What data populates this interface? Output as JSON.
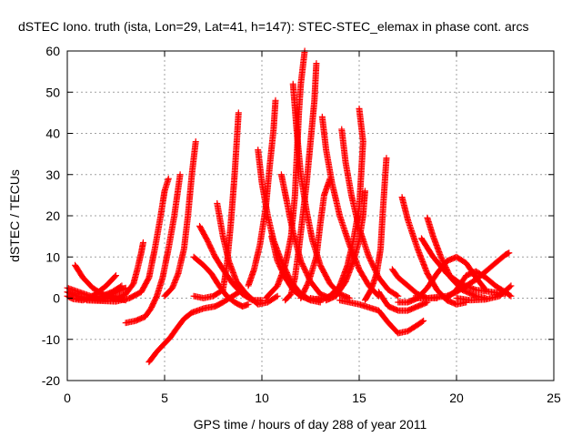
{
  "chart_data": {
    "type": "scatter",
    "title": "dSTEC Iono. truth (ista, Lon=29, Lat=41, h=147): STEC-STEC_elemax in phase cont. arcs",
    "xlabel": "GPS time / hours of day 288 of year 2011",
    "ylabel": "dSTEC  / TECUs",
    "xlim": [
      0,
      25
    ],
    "ylim": [
      -20,
      60
    ],
    "xticks": [
      0,
      5,
      10,
      15,
      20,
      25
    ],
    "yticks": [
      -20,
      -10,
      0,
      10,
      20,
      30,
      40,
      50,
      60
    ],
    "grid": true,
    "series_color": "#ff0000",
    "marker": "plus",
    "series": [
      {
        "points": [
          [
            0.0,
            1.5
          ],
          [
            0.5,
            0.5
          ],
          [
            1.0,
            0.0
          ],
          [
            1.5,
            -0.3
          ],
          [
            2.0,
            0.2
          ],
          [
            2.5,
            1.5
          ],
          [
            3.0,
            2.5
          ]
        ]
      },
      {
        "points": [
          [
            0.0,
            0.5
          ],
          [
            0.3,
            -0.2
          ],
          [
            0.8,
            -0.5
          ],
          [
            1.2,
            0.2
          ],
          [
            1.6,
            1.5
          ],
          [
            2.0,
            3.0
          ],
          [
            2.5,
            5.5
          ]
        ]
      },
      {
        "points": [
          [
            0.4,
            8.0
          ],
          [
            0.8,
            5.0
          ],
          [
            1.3,
            2.5
          ],
          [
            1.8,
            1.0
          ],
          [
            2.4,
            0.0
          ],
          [
            3.0,
            -0.5
          ]
        ]
      },
      {
        "points": [
          [
            0.0,
            2.5
          ],
          [
            0.6,
            1.5
          ],
          [
            1.2,
            0.5
          ],
          [
            1.8,
            0.5
          ],
          [
            2.3,
            1.5
          ],
          [
            2.8,
            3.0
          ]
        ]
      },
      {
        "points": [
          [
            0.5,
            0.0
          ],
          [
            1.5,
            -0.5
          ],
          [
            2.5,
            0.0
          ],
          [
            3.0,
            1.0
          ],
          [
            3.4,
            3.5
          ],
          [
            3.6,
            7.0
          ],
          [
            3.8,
            11.0
          ],
          [
            3.9,
            13.5
          ]
        ]
      },
      {
        "points": [
          [
            1.0,
            -0.5
          ],
          [
            2.5,
            -0.8
          ],
          [
            3.2,
            0.0
          ],
          [
            3.8,
            1.5
          ],
          [
            4.2,
            5.0
          ],
          [
            4.5,
            12.0
          ],
          [
            4.8,
            20.0
          ],
          [
            5.0,
            26.0
          ],
          [
            5.2,
            29.0
          ]
        ]
      },
      {
        "points": [
          [
            3.0,
            -6.0
          ],
          [
            3.5,
            -5.5
          ],
          [
            4.0,
            -4.5
          ],
          [
            4.3,
            -2.5
          ],
          [
            4.6,
            0.5
          ],
          [
            4.9,
            5.0
          ],
          [
            5.2,
            12.0
          ],
          [
            5.5,
            20.0
          ],
          [
            5.8,
            30.0
          ]
        ]
      },
      {
        "points": [
          [
            4.2,
            -15.5
          ],
          [
            4.6,
            -13.0
          ],
          [
            5.0,
            -11.0
          ],
          [
            5.3,
            -9.5
          ],
          [
            5.6,
            -7.5
          ],
          [
            6.0,
            -5.0
          ],
          [
            6.4,
            -3.5
          ],
          [
            7.0,
            -2.5
          ],
          [
            7.6,
            -2.0
          ],
          [
            8.0,
            -1.0
          ],
          [
            8.5,
            0.5
          ],
          [
            9.0,
            2.0
          ]
        ]
      },
      {
        "points": [
          [
            5.0,
            0.5
          ],
          [
            5.4,
            2.5
          ],
          [
            5.7,
            6.0
          ],
          [
            6.0,
            12.0
          ],
          [
            6.2,
            20.0
          ],
          [
            6.4,
            30.0
          ],
          [
            6.6,
            38.0
          ]
        ]
      },
      {
        "points": [
          [
            6.5,
            10.0
          ],
          [
            7.0,
            8.0
          ],
          [
            7.4,
            6.0
          ],
          [
            7.8,
            3.0
          ],
          [
            8.2,
            0.5
          ],
          [
            8.6,
            -1.0
          ],
          [
            9.0,
            -2.0
          ],
          [
            9.3,
            -1.5
          ]
        ]
      },
      {
        "points": [
          [
            6.8,
            17.5
          ],
          [
            7.2,
            14.0
          ],
          [
            7.6,
            10.0
          ],
          [
            8.0,
            7.0
          ],
          [
            8.5,
            3.5
          ],
          [
            9.0,
            1.0
          ],
          [
            9.5,
            -0.5
          ],
          [
            10.0,
            -0.5
          ]
        ]
      },
      {
        "points": [
          [
            7.7,
            23.0
          ],
          [
            8.0,
            15.0
          ],
          [
            8.3,
            9.0
          ],
          [
            8.7,
            4.0
          ],
          [
            9.2,
            1.0
          ],
          [
            9.8,
            -1.5
          ],
          [
            10.3,
            -1.0
          ],
          [
            10.8,
            0.5
          ]
        ]
      },
      {
        "points": [
          [
            6.5,
            0.5
          ],
          [
            7.0,
            0.0
          ],
          [
            7.5,
            0.5
          ],
          [
            8.0,
            2.0
          ],
          [
            8.2,
            8.0
          ],
          [
            8.4,
            18.0
          ],
          [
            8.6,
            30.0
          ],
          [
            8.8,
            45.0
          ]
        ]
      },
      {
        "points": [
          [
            9.8,
            36.0
          ],
          [
            10.0,
            28.0
          ],
          [
            10.3,
            20.0
          ],
          [
            10.6,
            14.0
          ],
          [
            11.0,
            9.0
          ],
          [
            11.5,
            4.0
          ],
          [
            12.0,
            1.0
          ],
          [
            12.5,
            -0.5
          ],
          [
            13.0,
            -1.0
          ]
        ]
      },
      {
        "points": [
          [
            9.3,
            3.0
          ],
          [
            9.6,
            7.0
          ],
          [
            9.9,
            13.0
          ],
          [
            10.2,
            22.0
          ],
          [
            10.4,
            32.0
          ],
          [
            10.6,
            41.0
          ],
          [
            10.7,
            48.0
          ]
        ]
      },
      {
        "points": [
          [
            10.5,
            15.0
          ],
          [
            10.8,
            9.0
          ],
          [
            11.2,
            5.0
          ],
          [
            11.6,
            2.0
          ],
          [
            12.0,
            0.5
          ],
          [
            12.5,
            -0.5
          ],
          [
            13.0,
            0.0
          ]
        ]
      },
      {
        "points": [
          [
            10.2,
            0.0
          ],
          [
            10.8,
            3.0
          ],
          [
            11.2,
            8.0
          ],
          [
            11.5,
            15.0
          ],
          [
            11.7,
            25.0
          ],
          [
            11.8,
            35.0
          ],
          [
            11.9,
            45.0
          ],
          [
            12.0,
            52.0
          ],
          [
            12.2,
            60.0
          ]
        ]
      },
      {
        "points": [
          [
            11.0,
            30.0
          ],
          [
            11.3,
            23.0
          ],
          [
            11.6,
            16.0
          ],
          [
            12.0,
            9.0
          ],
          [
            12.5,
            4.0
          ],
          [
            13.0,
            1.0
          ],
          [
            13.5,
            0.0
          ]
        ]
      },
      {
        "points": [
          [
            11.6,
            52.0
          ],
          [
            11.8,
            40.0
          ],
          [
            12.0,
            30.0
          ],
          [
            12.3,
            21.0
          ],
          [
            12.6,
            14.0
          ],
          [
            13.0,
            8.0
          ],
          [
            13.5,
            3.5
          ],
          [
            14.0,
            1.0
          ],
          [
            14.5,
            0.0
          ]
        ]
      },
      {
        "points": [
          [
            12.8,
            57.0
          ],
          [
            12.7,
            48.0
          ],
          [
            12.5,
            38.0
          ],
          [
            12.3,
            28.0
          ],
          [
            12.1,
            20.0
          ],
          [
            11.9,
            12.0
          ],
          [
            11.7,
            5.0
          ],
          [
            11.5,
            1.0
          ],
          [
            11.2,
            -0.5
          ]
        ]
      },
      {
        "points": [
          [
            13.1,
            44.0
          ],
          [
            13.3,
            36.0
          ],
          [
            13.6,
            28.0
          ],
          [
            14.0,
            20.0
          ],
          [
            14.5,
            13.0
          ],
          [
            15.0,
            7.0
          ],
          [
            15.5,
            3.0
          ],
          [
            16.0,
            0.5
          ]
        ]
      },
      {
        "points": [
          [
            12.0,
            0.0
          ],
          [
            12.4,
            4.0
          ],
          [
            12.8,
            10.0
          ],
          [
            13.0,
            18.0
          ],
          [
            13.2,
            25.0
          ],
          [
            13.5,
            29.0
          ]
        ]
      },
      {
        "points": [
          [
            14.1,
            41.0
          ],
          [
            14.3,
            33.0
          ],
          [
            14.6,
            25.0
          ],
          [
            15.0,
            17.0
          ],
          [
            15.5,
            10.0
          ],
          [
            16.0,
            5.0
          ],
          [
            16.5,
            2.0
          ],
          [
            17.0,
            0.5
          ]
        ]
      },
      {
        "points": [
          [
            12.5,
            0.0
          ],
          [
            13.0,
            -0.5
          ],
          [
            13.5,
            0.5
          ],
          [
            14.0,
            3.0
          ],
          [
            14.4,
            8.0
          ],
          [
            14.7,
            14.0
          ],
          [
            15.0,
            22.0
          ],
          [
            15.1,
            30.0
          ],
          [
            15.2,
            38.0
          ],
          [
            15.0,
            46.0
          ]
        ]
      },
      {
        "points": [
          [
            15.3,
            26.0
          ],
          [
            15.2,
            20.0
          ],
          [
            15.0,
            14.0
          ],
          [
            14.7,
            9.0
          ],
          [
            14.3,
            4.0
          ],
          [
            13.8,
            0.5
          ],
          [
            13.3,
            -0.5
          ]
        ]
      },
      {
        "points": [
          [
            15.3,
            -0.5
          ],
          [
            15.6,
            2.0
          ],
          [
            15.9,
            6.0
          ],
          [
            16.1,
            12.0
          ],
          [
            16.2,
            20.0
          ],
          [
            16.3,
            27.0
          ],
          [
            16.4,
            34.0
          ]
        ]
      },
      {
        "points": [
          [
            14.0,
            -0.5
          ],
          [
            15.0,
            -1.5
          ],
          [
            16.0,
            -3.0
          ],
          [
            16.5,
            -6.0
          ],
          [
            17.0,
            -8.5
          ],
          [
            17.5,
            -8.0
          ],
          [
            18.0,
            -6.5
          ],
          [
            18.3,
            -5.5
          ]
        ]
      },
      {
        "points": [
          [
            16.0,
            1.5
          ],
          [
            16.5,
            -2.0
          ],
          [
            17.0,
            -3.0
          ],
          [
            17.5,
            -3.0
          ],
          [
            18.0,
            -2.0
          ],
          [
            18.5,
            -1.0
          ]
        ]
      },
      {
        "points": [
          [
            17.0,
            -1.0
          ],
          [
            17.5,
            -1.0
          ],
          [
            18.0,
            0.0
          ],
          [
            18.5,
            2.5
          ],
          [
            19.0,
            6.0
          ],
          [
            19.5,
            9.0
          ],
          [
            20.0,
            10.0
          ],
          [
            20.5,
            8.5
          ],
          [
            21.0,
            5.0
          ],
          [
            21.5,
            2.0
          ]
        ]
      },
      {
        "points": [
          [
            17.2,
            24.5
          ],
          [
            17.5,
            19.0
          ],
          [
            18.0,
            12.0
          ],
          [
            18.5,
            6.0
          ],
          [
            19.0,
            2.0
          ],
          [
            19.5,
            -0.5
          ],
          [
            20.0,
            -1.5
          ],
          [
            20.5,
            -1.0
          ]
        ]
      },
      {
        "points": [
          [
            18.5,
            19.5
          ],
          [
            18.8,
            15.0
          ],
          [
            19.2,
            10.0
          ],
          [
            19.7,
            5.0
          ],
          [
            20.3,
            2.0
          ],
          [
            21.0,
            0.5
          ],
          [
            21.5,
            0.0
          ]
        ]
      },
      {
        "points": [
          [
            16.7,
            7.0
          ],
          [
            17.0,
            5.0
          ],
          [
            17.5,
            3.0
          ],
          [
            18.0,
            1.0
          ],
          [
            18.5,
            0.0
          ],
          [
            19.0,
            0.0
          ]
        ]
      },
      {
        "points": [
          [
            18.2,
            14.5
          ],
          [
            18.8,
            10.0
          ],
          [
            19.5,
            6.0
          ],
          [
            20.2,
            3.5
          ],
          [
            21.0,
            2.0
          ],
          [
            21.8,
            1.5
          ],
          [
            22.5,
            1.0
          ]
        ]
      },
      {
        "points": [
          [
            17.8,
            0.0
          ],
          [
            18.5,
            0.0
          ],
          [
            19.5,
            0.5
          ],
          [
            20.0,
            1.5
          ],
          [
            20.5,
            3.0
          ],
          [
            21.0,
            4.5
          ],
          [
            21.5,
            6.5
          ],
          [
            22.0,
            8.5
          ],
          [
            22.5,
            10.5
          ],
          [
            22.7,
            11.0
          ]
        ]
      },
      {
        "points": [
          [
            19.5,
            0.0
          ],
          [
            20.0,
            2.0
          ],
          [
            20.5,
            5.5
          ],
          [
            21.0,
            6.5
          ],
          [
            21.5,
            5.0
          ],
          [
            22.0,
            3.0
          ],
          [
            22.5,
            1.5
          ],
          [
            22.8,
            0.5
          ]
        ]
      },
      {
        "points": [
          [
            20.0,
            0.0
          ],
          [
            20.7,
            -0.5
          ],
          [
            21.5,
            -0.3
          ],
          [
            22.2,
            0.5
          ],
          [
            22.8,
            3.0
          ]
        ]
      }
    ]
  }
}
